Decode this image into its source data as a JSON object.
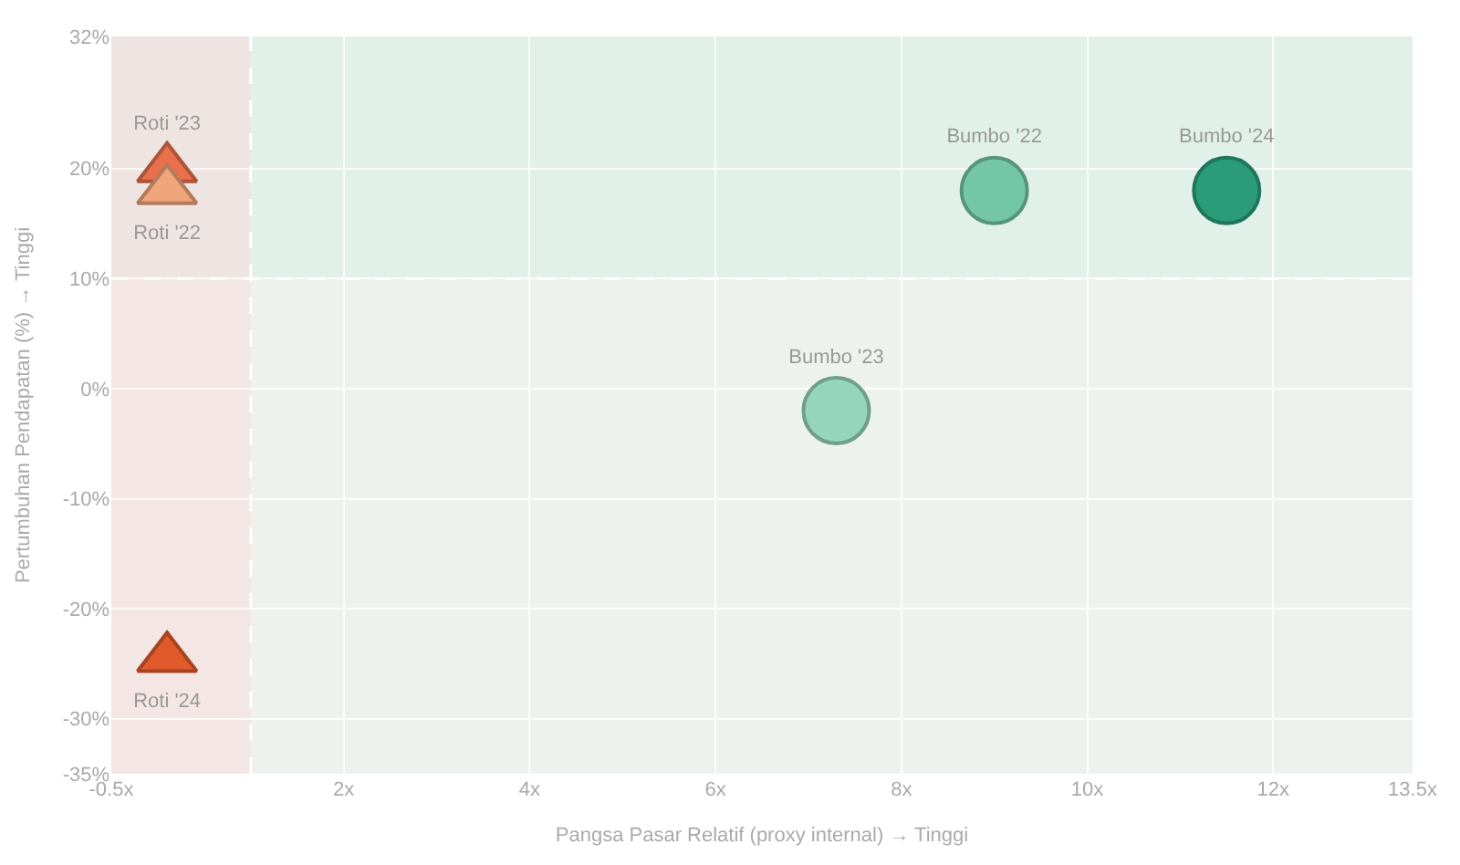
{
  "chart_data": {
    "type": "scatter",
    "xlabel": "Pangsa Pasar Relatif (proxy internal) → Tinggi",
    "ylabel": "Pertumbuhan Pendapatan (%) → Tinggi",
    "series": [
      {
        "name": "Roti '23",
        "color": "#e8704c",
        "marker": "triangle",
        "x": [
          0.1
        ],
        "values": [
          20
        ]
      },
      {
        "name": "Roti '22",
        "color": "#f0a57a",
        "marker": "triangle",
        "x": [
          0.1
        ],
        "values": [
          18
        ]
      },
      {
        "name": "Roti '24",
        "color": "#e05a2b",
        "marker": "triangle",
        "x": [
          0.1
        ],
        "values": [
          -24.5
        ]
      },
      {
        "name": "Bumbo '22",
        "color": "#74c6a8",
        "marker": "circle",
        "x": [
          9.0
        ],
        "values": [
          18
        ]
      },
      {
        "name": "Bumbo '24",
        "color": "#2a9d78",
        "marker": "circle",
        "x": [
          11.5
        ],
        "values": [
          18
        ]
      },
      {
        "name": "Bumbo '23",
        "color": "#95d5bb",
        "marker": "circle",
        "x": [
          7.3
        ],
        "values": [
          -2
        ]
      }
    ],
    "xlim": [
      -0.5,
      13.5
    ],
    "xticks": [
      {
        "value": -0.5,
        "label": "-0.5x"
      },
      {
        "value": 2,
        "label": "2x"
      },
      {
        "value": 4,
        "label": "4x"
      },
      {
        "value": 6,
        "label": "6x"
      },
      {
        "value": 8,
        "label": "8x"
      },
      {
        "value": 10,
        "label": "10x"
      },
      {
        "value": 12,
        "label": "12x"
      },
      {
        "value": 13.5,
        "label": "13.5x"
      }
    ],
    "ylim": [
      -35,
      32
    ],
    "yticks": [
      {
        "value": -35,
        "label": "-35%"
      },
      {
        "value": -30,
        "label": "-30%"
      },
      {
        "value": -20,
        "label": "-20%"
      },
      {
        "value": -10,
        "label": "-10%"
      },
      {
        "value": 0,
        "label": "0%"
      },
      {
        "value": 10,
        "label": "10%"
      },
      {
        "value": 20,
        "label": "20%"
      },
      {
        "value": 32,
        "label": "32%"
      }
    ],
    "bands": [
      {
        "axis": "y",
        "from": 10,
        "to": 32,
        "color": "#d8efe6"
      },
      {
        "axis": "x",
        "from": -0.5,
        "to": 1,
        "color": "#f7dede"
      }
    ],
    "ref_lines": [
      {
        "axis": "x",
        "value": 1,
        "color": "#ffffff",
        "line_style": "dashed"
      },
      {
        "axis": "y",
        "value": 10,
        "color": "#ffffff",
        "line_style": "dashed"
      }
    ],
    "grid": true,
    "legend": false
  }
}
